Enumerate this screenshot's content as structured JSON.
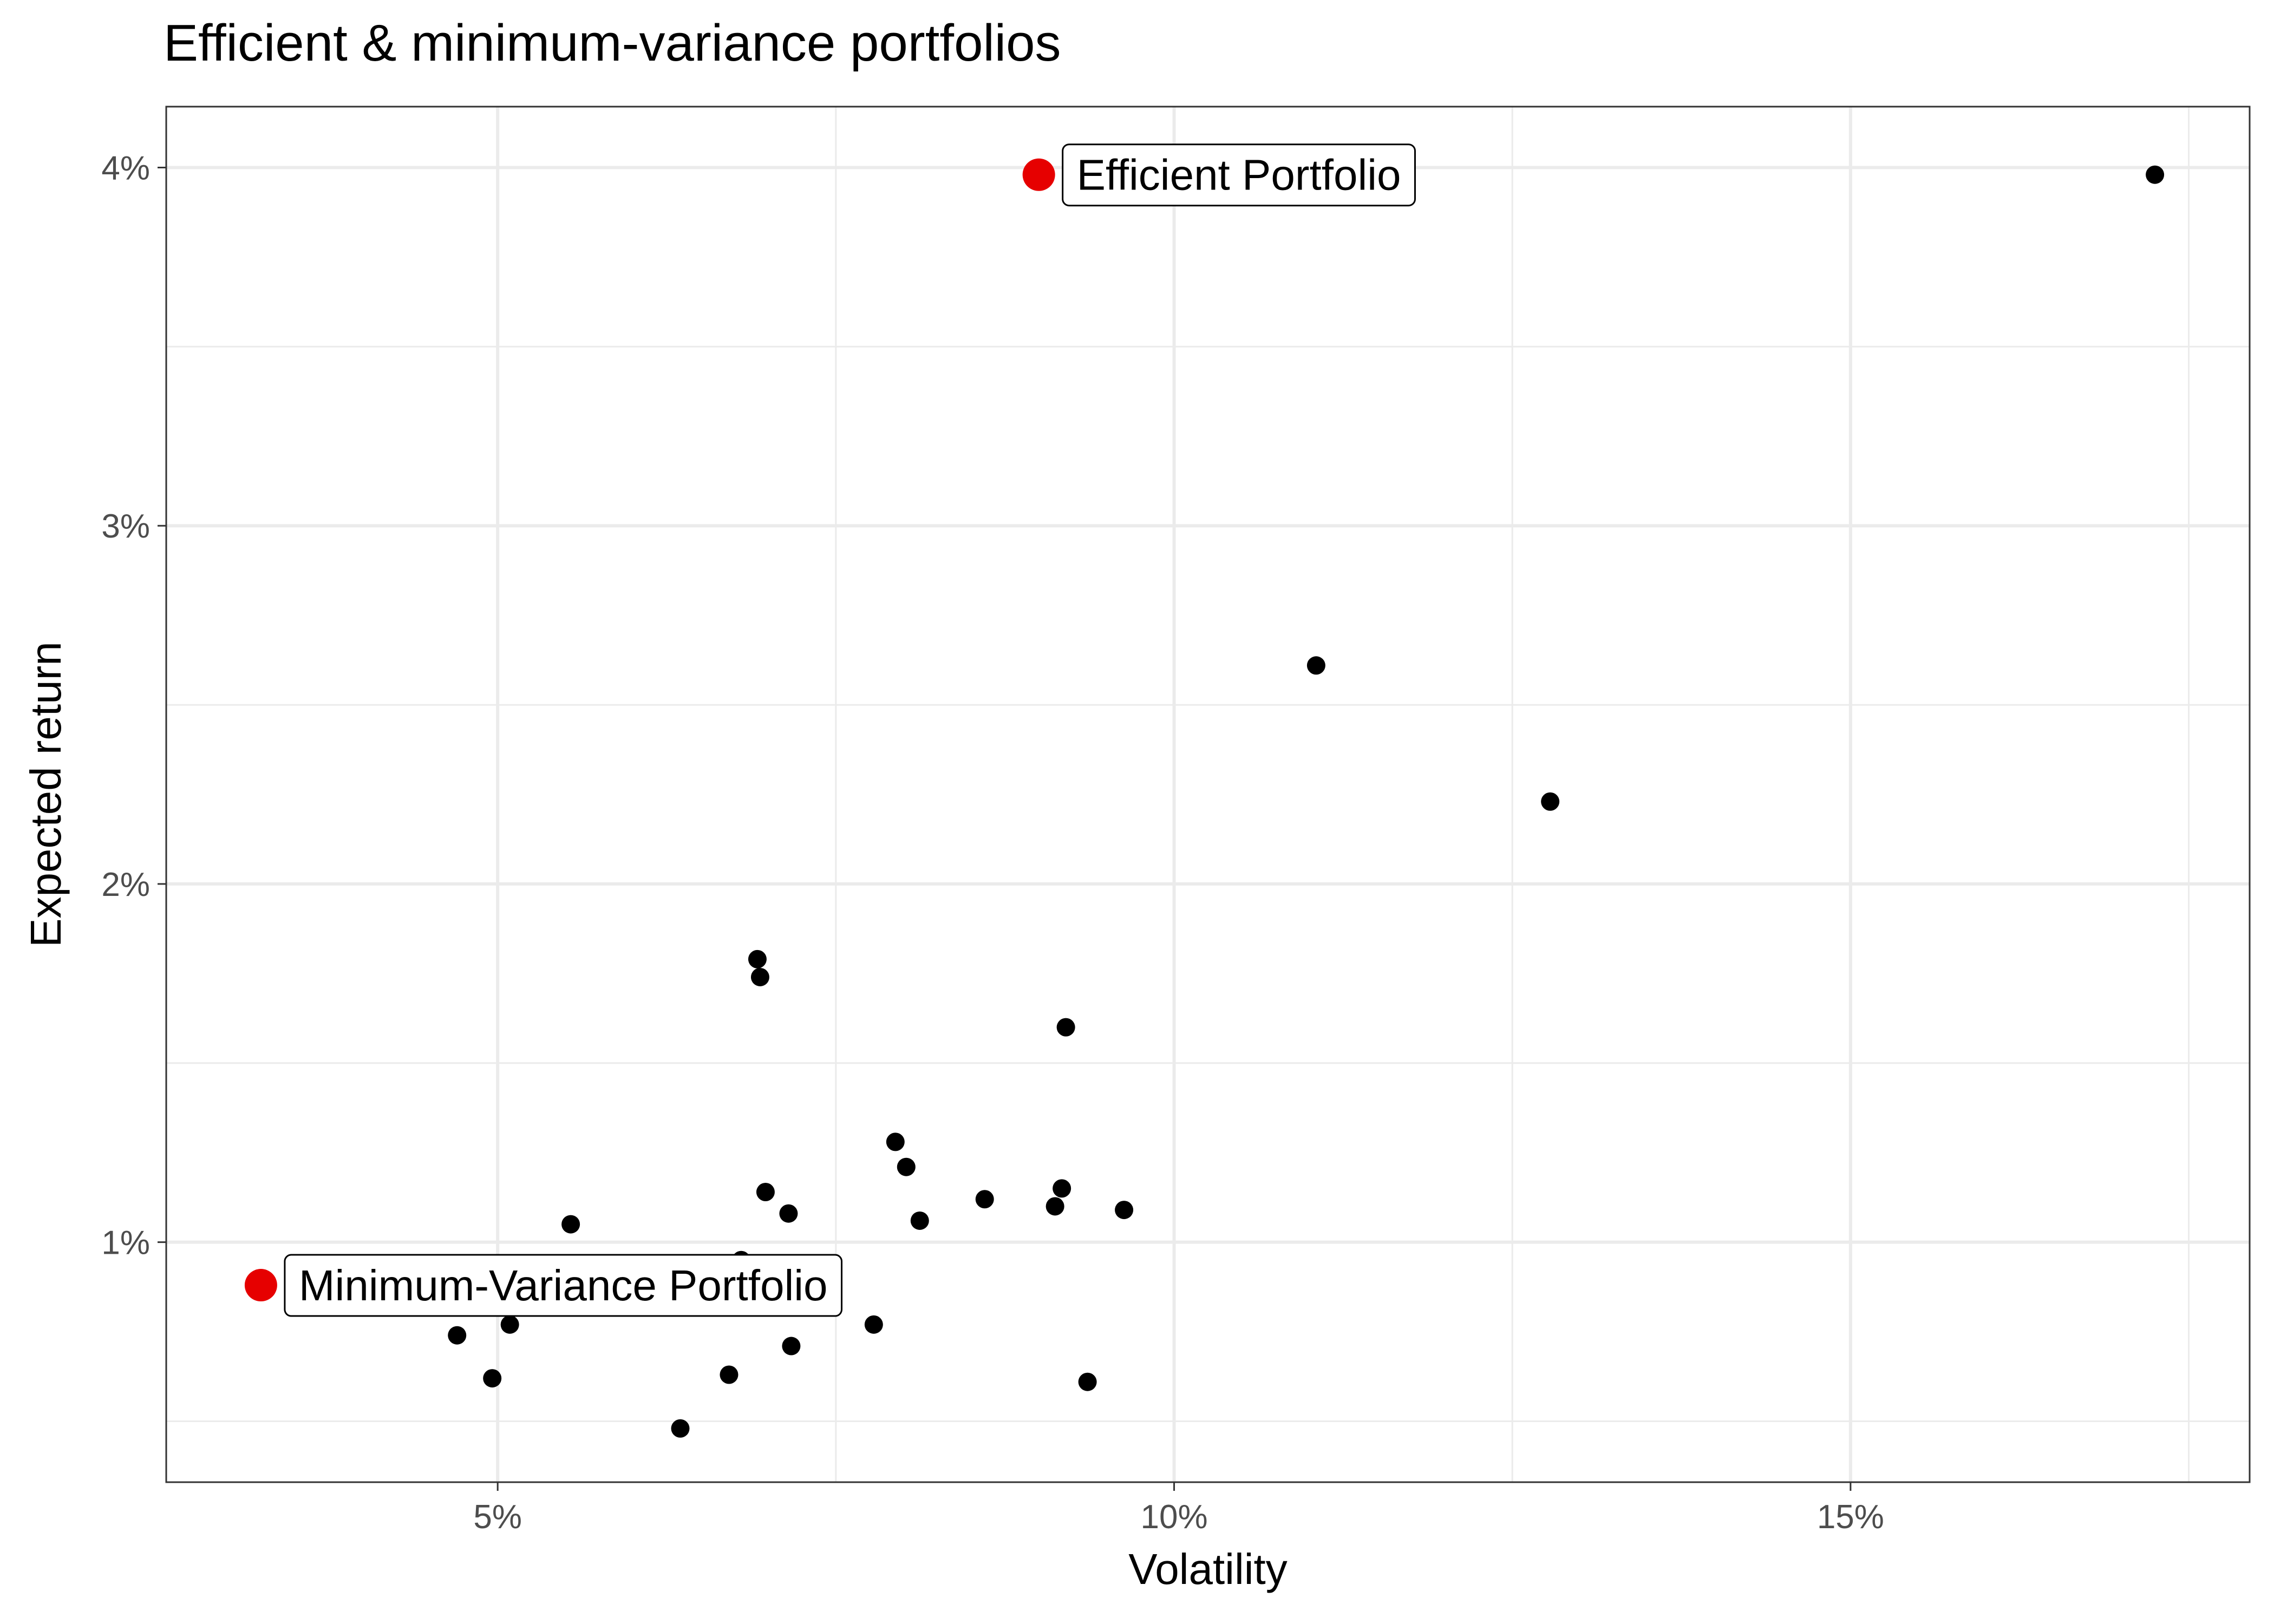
{
  "chart_data": {
    "type": "scatter",
    "title": "Efficient & minimum-variance portfolios",
    "xlabel": "Volatility",
    "ylabel": "Expected return",
    "xlim": [
      2.55,
      17.95
    ],
    "ylim": [
      0.33,
      4.17
    ],
    "x_ticks": [
      5,
      10,
      15
    ],
    "x_tick_labels": [
      "5%",
      "10%",
      "15%"
    ],
    "y_ticks": [
      1,
      2,
      3,
      4
    ],
    "y_tick_labels": [
      "1%",
      "2%",
      "3%",
      "4%"
    ],
    "grid": true,
    "series": [
      {
        "color": "#000000",
        "points": [
          {
            "x": 17.25,
            "y": 3.98
          },
          {
            "x": 11.05,
            "y": 2.61
          },
          {
            "x": 12.78,
            "y": 2.23
          },
          {
            "x": 6.92,
            "y": 1.79
          },
          {
            "x": 6.94,
            "y": 1.74
          },
          {
            "x": 9.2,
            "y": 1.6
          },
          {
            "x": 7.94,
            "y": 1.28
          },
          {
            "x": 8.02,
            "y": 1.21
          },
          {
            "x": 6.98,
            "y": 1.14
          },
          {
            "x": 7.15,
            "y": 1.08
          },
          {
            "x": 8.12,
            "y": 1.06
          },
          {
            "x": 8.6,
            "y": 1.12
          },
          {
            "x": 9.17,
            "y": 1.15
          },
          {
            "x": 9.12,
            "y": 1.1
          },
          {
            "x": 9.63,
            "y": 1.09
          },
          {
            "x": 5.54,
            "y": 1.05
          },
          {
            "x": 6.8,
            "y": 0.95
          },
          {
            "x": 4.7,
            "y": 0.74
          },
          {
            "x": 5.09,
            "y": 0.77
          },
          {
            "x": 4.96,
            "y": 0.62
          },
          {
            "x": 7.17,
            "y": 0.71
          },
          {
            "x": 7.78,
            "y": 0.77
          },
          {
            "x": 6.71,
            "y": 0.63
          },
          {
            "x": 6.35,
            "y": 0.48
          },
          {
            "x": 9.36,
            "y": 0.61
          }
        ]
      },
      {
        "color": "#e60000",
        "points": [
          {
            "x": 9.0,
            "y": 3.98,
            "label": "Efficient Portfolio"
          },
          {
            "x": 3.25,
            "y": 0.88,
            "label": "Minimum-Variance Portfolio"
          }
        ]
      }
    ]
  }
}
